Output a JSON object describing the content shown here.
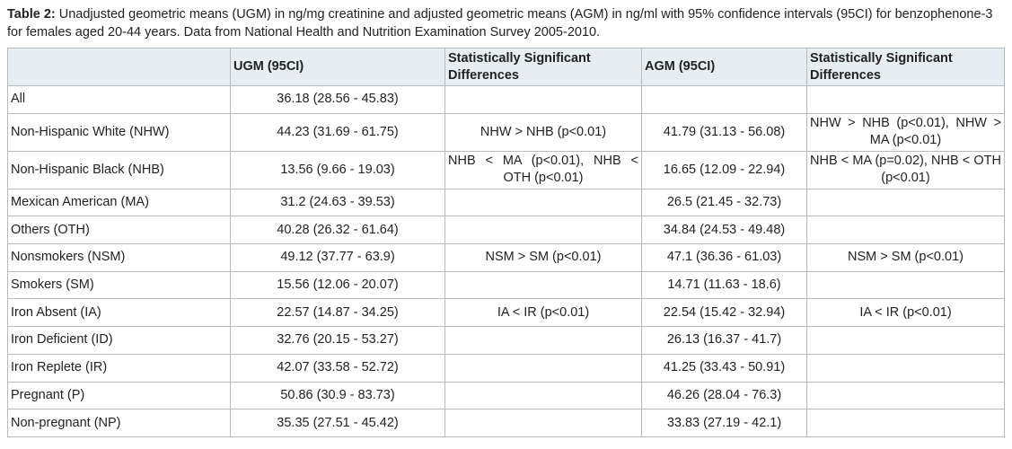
{
  "caption": {
    "label": "Table 2:",
    "text": " Unadjusted geometric means (UGM) in ng/mg creatinine and adjusted geometric means (AGM) in ng/ml with 95% confidence intervals (95CI) for benzophenone-3 for females aged 20-44 years. Data from National Health and Nutrition Examination Survey 2005-2010."
  },
  "table": {
    "headers": {
      "group": "",
      "ugm": "UGM (95CI)",
      "ugm_sig": "Statistically Significant Differences",
      "agm": "AGM (95CI)",
      "agm_sig": "Statistically Significant Differences"
    },
    "rows": [
      {
        "group": "All",
        "ugm": "36.18 (28.56 - 45.83)",
        "ugm_sig": "",
        "agm": "",
        "agm_sig": ""
      },
      {
        "group": "Non-Hispanic White (NHW)",
        "ugm": "44.23 (31.69 - 61.75)",
        "ugm_sig": "NHW > NHB (p<0.01)",
        "agm": "41.79 (31.13 - 56.08)",
        "agm_sig": "NHW > NHB (p<0.01), NHW > MA (p<0.01)"
      },
      {
        "group": "Non-Hispanic Black (NHB)",
        "ugm": "13.56 (9.66 - 19.03)",
        "ugm_sig": "NHB < MA (p<0.01), NHB < OTH (p<0.01)",
        "agm": "16.65 (12.09 - 22.94)",
        "agm_sig": "NHB < MA (p=0.02), NHB < OTH (p<0.01)"
      },
      {
        "group": "Mexican American (MA)",
        "ugm": "31.2 (24.63 - 39.53)",
        "ugm_sig": "",
        "agm": "26.5 (21.45 - 32.73)",
        "agm_sig": ""
      },
      {
        "group": "Others (OTH)",
        "ugm": "40.28 (26.32 - 61.64)",
        "ugm_sig": "",
        "agm": "34.84 (24.53 - 49.48)",
        "agm_sig": ""
      },
      {
        "group": "Nonsmokers (NSM)",
        "ugm": "49.12 (37.77 - 63.9)",
        "ugm_sig": "NSM > SM (p<0.01)",
        "agm": "47.1 (36.36 - 61.03)",
        "agm_sig": "NSM > SM (p<0.01)"
      },
      {
        "group": "Smokers (SM)",
        "ugm": "15.56 (12.06 - 20.07)",
        "ugm_sig": "",
        "agm": "14.71 (11.63 - 18.6)",
        "agm_sig": ""
      },
      {
        "group": "Iron Absent (IA)",
        "ugm": "22.57 (14.87 - 34.25)",
        "ugm_sig": "IA < IR (p<0.01)",
        "agm": "22.54 (15.42 - 32.94)",
        "agm_sig": "IA < IR (p<0.01)"
      },
      {
        "group": "Iron Deficient (ID)",
        "ugm": "32.76 (20.15 - 53.27)",
        "ugm_sig": "",
        "agm": "26.13 (16.37 - 41.7)",
        "agm_sig": ""
      },
      {
        "group": "Iron Replete (IR)",
        "ugm": "42.07 (33.58 - 52.72)",
        "ugm_sig": "",
        "agm": "41.25 (33.43 - 50.91)",
        "agm_sig": ""
      },
      {
        "group": "Pregnant (P)",
        "ugm": "50.86 (30.9 - 83.73)",
        "ugm_sig": "",
        "agm": "46.26 (28.04 - 76.3)",
        "agm_sig": ""
      },
      {
        "group": "Non-pregnant (NP)",
        "ugm": "35.35 (27.51 - 45.42)",
        "ugm_sig": "",
        "agm": "33.83 (27.19 - 42.1)",
        "agm_sig": ""
      }
    ]
  },
  "colors": {
    "header_bg": "#e7eef1",
    "border": "#b9b9b9",
    "text": "#222222"
  }
}
